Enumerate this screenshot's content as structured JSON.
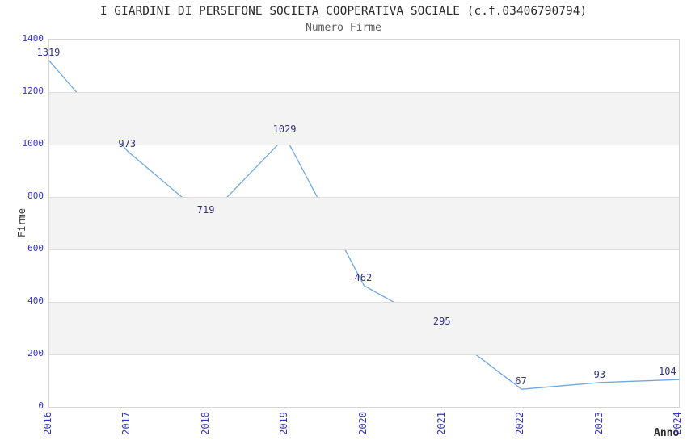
{
  "header": {
    "title": "I GIARDINI DI PERSEFONE SOCIETA COOPERATIVA SOCIALE (c.f.03406790794)",
    "subtitle": "Numero Firme"
  },
  "chart_data": {
    "type": "line",
    "title": "I GIARDINI DI PERSEFONE SOCIETA COOPERATIVA SOCIALE (c.f.03406790794)",
    "subtitle": "Numero Firme",
    "categories": [
      "2016",
      "2017",
      "2018",
      "2019",
      "2020",
      "2021",
      "2022",
      "2023",
      "2024"
    ],
    "series": [
      {
        "name": "Numero Firme",
        "values": [
          1319,
          973,
          719,
          1029,
          462,
          295,
          67,
          93,
          104
        ]
      }
    ],
    "data_labels": [
      "1319",
      "973",
      "719",
      "1029",
      "462",
      "295",
      "67",
      "93",
      "104"
    ],
    "xlabel": "Anno",
    "ylabel": "Firme",
    "ylim": [
      0,
      1400
    ],
    "ytick_step": 200,
    "yticks": [
      "0",
      "200",
      "400",
      "600",
      "800",
      "1000",
      "1200",
      "1400"
    ],
    "grid": true,
    "alternating_bands": true,
    "legend_position": "none"
  },
  "colors": {
    "line": "#6fa8e0",
    "tick_label": "#3333cc",
    "data_label": "#333380",
    "band": "#f3f3f3",
    "gridline": "#dedede",
    "plot_border": "#d4d4d4",
    "title": "#2b2b2b",
    "subtitle": "#595959",
    "axis_title": "#3a3a3a",
    "background": "#ffffff"
  }
}
